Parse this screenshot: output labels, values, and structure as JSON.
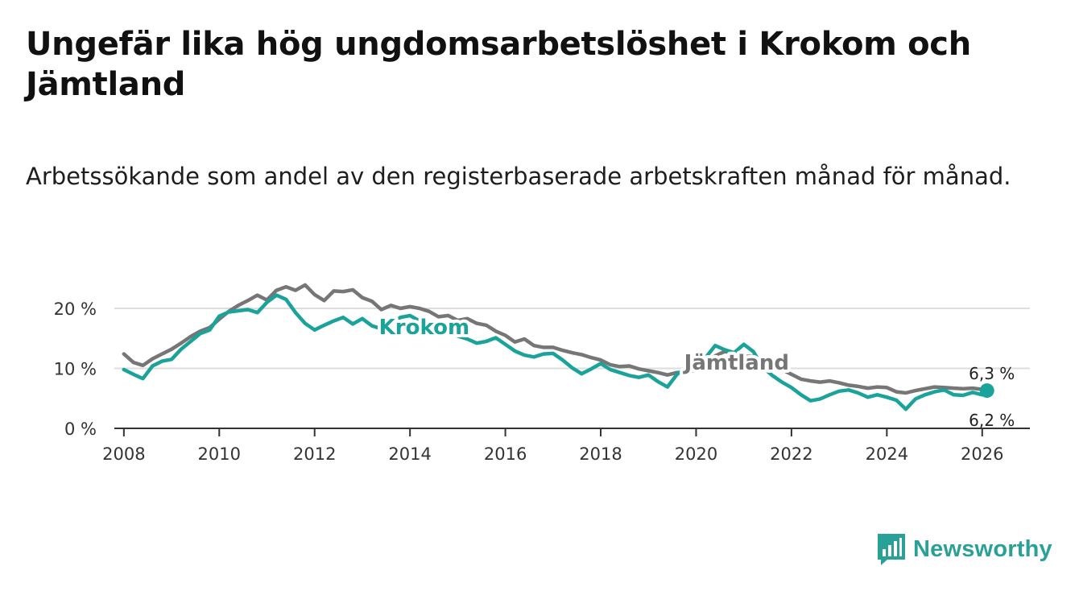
{
  "title": "Ungefär lika hög ungdomsarbetslöshet i Krokom och Jämtland",
  "subtitle": "Arbetssökande som andel av den registerbaserade arbetskraften månad för månad.",
  "brand": {
    "name": "Newsworthy",
    "color": "#2aa197",
    "logo_icon": "bar-chart-speech-bubble-icon"
  },
  "chart_data": {
    "type": "line",
    "title": "Ungefär lika hög ungdomsarbetslöshet i Krokom och Jämtland",
    "xlabel": "",
    "ylabel": "",
    "xlim": [
      2007.8,
      2027.0
    ],
    "ylim": [
      0,
      25
    ],
    "grid": true,
    "y_ticks": [
      0,
      10,
      20
    ],
    "y_tick_labels": [
      "0 %",
      "10 %",
      "20 %"
    ],
    "x_ticks": [
      2008,
      2010,
      2012,
      2014,
      2016,
      2018,
      2020,
      2022,
      2024,
      2026
    ],
    "x_tick_labels": [
      "2008",
      "2010",
      "2012",
      "2014",
      "2016",
      "2018",
      "2020",
      "2022",
      "2024",
      "2026"
    ],
    "series": [
      {
        "name": "Jämtland",
        "color": "#767676",
        "label_at": [
          2019.75,
          9.8
        ],
        "end_label": "6,3 %",
        "points": [
          [
            2008.0,
            12.4
          ],
          [
            2008.2,
            11.0
          ],
          [
            2008.4,
            10.5
          ],
          [
            2008.6,
            11.6
          ],
          [
            2008.8,
            12.4
          ],
          [
            2009.0,
            13.2
          ],
          [
            2009.2,
            14.2
          ],
          [
            2009.4,
            15.3
          ],
          [
            2009.6,
            16.2
          ],
          [
            2009.8,
            16.8
          ],
          [
            2010.0,
            18.2
          ],
          [
            2010.2,
            19.5
          ],
          [
            2010.4,
            20.5
          ],
          [
            2010.6,
            21.3
          ],
          [
            2010.8,
            22.2
          ],
          [
            2011.0,
            21.4
          ],
          [
            2011.2,
            23.0
          ],
          [
            2011.4,
            23.6
          ],
          [
            2011.6,
            23.0
          ],
          [
            2011.8,
            23.9
          ],
          [
            2012.0,
            22.3
          ],
          [
            2012.2,
            21.3
          ],
          [
            2012.4,
            22.9
          ],
          [
            2012.6,
            22.8
          ],
          [
            2012.8,
            23.1
          ],
          [
            2013.0,
            21.8
          ],
          [
            2013.2,
            21.2
          ],
          [
            2013.4,
            19.8
          ],
          [
            2013.6,
            20.5
          ],
          [
            2013.8,
            20.0
          ],
          [
            2014.0,
            20.3
          ],
          [
            2014.2,
            20.0
          ],
          [
            2014.4,
            19.5
          ],
          [
            2014.6,
            18.6
          ],
          [
            2014.8,
            18.8
          ],
          [
            2015.0,
            18.0
          ],
          [
            2015.2,
            18.3
          ],
          [
            2015.4,
            17.5
          ],
          [
            2015.6,
            17.2
          ],
          [
            2015.8,
            16.2
          ],
          [
            2016.0,
            15.5
          ],
          [
            2016.2,
            14.4
          ],
          [
            2016.4,
            14.9
          ],
          [
            2016.6,
            13.8
          ],
          [
            2016.8,
            13.5
          ],
          [
            2017.0,
            13.5
          ],
          [
            2017.2,
            13.0
          ],
          [
            2017.4,
            12.6
          ],
          [
            2017.6,
            12.3
          ],
          [
            2017.8,
            11.8
          ],
          [
            2018.0,
            11.4
          ],
          [
            2018.2,
            10.6
          ],
          [
            2018.4,
            10.3
          ],
          [
            2018.6,
            10.4
          ],
          [
            2018.8,
            9.9
          ],
          [
            2019.0,
            9.6
          ],
          [
            2019.2,
            9.3
          ],
          [
            2019.4,
            8.9
          ],
          [
            2019.6,
            9.3
          ],
          [
            2019.8,
            9.3
          ],
          [
            2020.0,
            9.8
          ],
          [
            2020.2,
            10.5
          ],
          [
            2020.4,
            12.1
          ],
          [
            2020.6,
            12.8
          ],
          [
            2020.8,
            12.6
          ],
          [
            2021.0,
            12.0
          ],
          [
            2021.2,
            12.0
          ],
          [
            2021.4,
            11.5
          ],
          [
            2021.6,
            10.8
          ],
          [
            2021.8,
            9.8
          ],
          [
            2022.0,
            9.0
          ],
          [
            2022.2,
            8.2
          ],
          [
            2022.4,
            7.9
          ],
          [
            2022.6,
            7.7
          ],
          [
            2022.8,
            7.9
          ],
          [
            2023.0,
            7.6
          ],
          [
            2023.2,
            7.2
          ],
          [
            2023.4,
            7.0
          ],
          [
            2023.6,
            6.7
          ],
          [
            2023.8,
            6.9
          ],
          [
            2024.0,
            6.8
          ],
          [
            2024.2,
            6.1
          ],
          [
            2024.4,
            5.9
          ],
          [
            2024.6,
            6.3
          ],
          [
            2024.8,
            6.6
          ],
          [
            2025.0,
            6.9
          ],
          [
            2025.2,
            6.8
          ],
          [
            2025.4,
            6.7
          ],
          [
            2025.6,
            6.6
          ],
          [
            2025.8,
            6.7
          ],
          [
            2026.0,
            6.5
          ],
          [
            2026.1,
            6.3
          ]
        ]
      },
      {
        "name": "Krokom",
        "color": "#1aa39a",
        "label_at": [
          2013.35,
          15.7
        ],
        "end_label": "6,2 %",
        "points": [
          [
            2008.0,
            9.8
          ],
          [
            2008.2,
            9.0
          ],
          [
            2008.4,
            8.3
          ],
          [
            2008.6,
            10.4
          ],
          [
            2008.8,
            11.2
          ],
          [
            2009.0,
            11.5
          ],
          [
            2009.2,
            13.2
          ],
          [
            2009.4,
            14.5
          ],
          [
            2009.6,
            15.8
          ],
          [
            2009.8,
            16.4
          ],
          [
            2010.0,
            18.7
          ],
          [
            2010.2,
            19.4
          ],
          [
            2010.4,
            19.6
          ],
          [
            2010.6,
            19.8
          ],
          [
            2010.8,
            19.3
          ],
          [
            2011.0,
            21.0
          ],
          [
            2011.2,
            22.2
          ],
          [
            2011.4,
            21.5
          ],
          [
            2011.6,
            19.3
          ],
          [
            2011.8,
            17.5
          ],
          [
            2012.0,
            16.4
          ],
          [
            2012.2,
            17.2
          ],
          [
            2012.4,
            17.9
          ],
          [
            2012.6,
            18.5
          ],
          [
            2012.8,
            17.4
          ],
          [
            2013.0,
            18.3
          ],
          [
            2013.2,
            17.1
          ],
          [
            2013.4,
            16.6
          ],
          [
            2013.6,
            17.4
          ],
          [
            2013.8,
            18.5
          ],
          [
            2014.0,
            18.8
          ],
          [
            2014.2,
            17.9
          ],
          [
            2014.4,
            17.2
          ],
          [
            2014.6,
            16.3
          ],
          [
            2014.8,
            16.7
          ],
          [
            2015.0,
            15.4
          ],
          [
            2015.2,
            14.9
          ],
          [
            2015.4,
            14.2
          ],
          [
            2015.6,
            14.5
          ],
          [
            2015.8,
            15.1
          ],
          [
            2016.0,
            14.0
          ],
          [
            2016.2,
            12.9
          ],
          [
            2016.4,
            12.2
          ],
          [
            2016.6,
            11.9
          ],
          [
            2016.8,
            12.4
          ],
          [
            2017.0,
            12.5
          ],
          [
            2017.2,
            11.4
          ],
          [
            2017.4,
            10.1
          ],
          [
            2017.6,
            9.1
          ],
          [
            2017.8,
            9.9
          ],
          [
            2018.0,
            10.8
          ],
          [
            2018.2,
            9.8
          ],
          [
            2018.4,
            9.3
          ],
          [
            2018.6,
            8.8
          ],
          [
            2018.8,
            8.5
          ],
          [
            2019.0,
            8.9
          ],
          [
            2019.2,
            7.8
          ],
          [
            2019.4,
            6.9
          ],
          [
            2019.6,
            9.0
          ],
          [
            2019.8,
            10.2
          ],
          [
            2020.0,
            10.9
          ],
          [
            2020.2,
            11.8
          ],
          [
            2020.4,
            13.8
          ],
          [
            2020.6,
            13.1
          ],
          [
            2020.8,
            12.6
          ],
          [
            2021.0,
            14.0
          ],
          [
            2021.2,
            12.8
          ],
          [
            2021.4,
            10.2
          ],
          [
            2021.6,
            8.8
          ],
          [
            2021.8,
            7.7
          ],
          [
            2022.0,
            6.8
          ],
          [
            2022.2,
            5.6
          ],
          [
            2022.4,
            4.6
          ],
          [
            2022.6,
            4.9
          ],
          [
            2022.8,
            5.6
          ],
          [
            2023.0,
            6.2
          ],
          [
            2023.2,
            6.4
          ],
          [
            2023.4,
            5.9
          ],
          [
            2023.6,
            5.2
          ],
          [
            2023.8,
            5.6
          ],
          [
            2024.0,
            5.2
          ],
          [
            2024.2,
            4.7
          ],
          [
            2024.4,
            3.2
          ],
          [
            2024.6,
            4.9
          ],
          [
            2024.8,
            5.6
          ],
          [
            2025.0,
            6.1
          ],
          [
            2025.2,
            6.4
          ],
          [
            2025.4,
            5.6
          ],
          [
            2025.6,
            5.5
          ],
          [
            2025.8,
            6.0
          ],
          [
            2026.0,
            5.6
          ],
          [
            2026.1,
            6.2
          ]
        ]
      }
    ]
  }
}
